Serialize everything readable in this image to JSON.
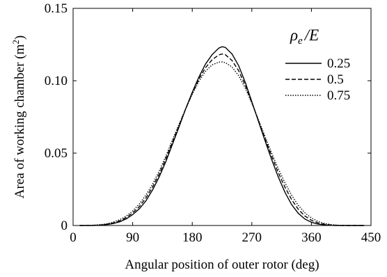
{
  "chart_data": {
    "type": "line",
    "title": "",
    "xlabel": "Angular position of outer rotor (deg)",
    "ylabel_main": "Area of working chamber (m",
    "ylabel_sup": "2",
    "ylabel_close": ")",
    "xlim": [
      0,
      450
    ],
    "ylim": [
      0,
      0.15
    ],
    "xticks": [
      0,
      90,
      180,
      270,
      360,
      450
    ],
    "xtick_labels": [
      "0",
      "90",
      "180",
      "270",
      "360",
      "450"
    ],
    "yticks": [
      0,
      0.05,
      0.1,
      0.15
    ],
    "ytick_labels": [
      "0",
      "0.05",
      "0.10",
      "0.15"
    ],
    "grid": false,
    "legend": {
      "title_main": "ρ",
      "title_sub": "e",
      "title_rest": "/E",
      "placement": "top-right"
    },
    "series": [
      {
        "name": "0.25",
        "dash": "solid",
        "x": [
          10,
          30,
          40,
          50,
          60,
          70,
          80,
          90,
          100,
          110,
          120,
          130,
          140,
          150,
          160,
          170,
          180,
          190,
          200,
          210,
          220,
          225,
          230,
          240,
          250,
          260,
          270,
          280,
          290,
          300,
          310,
          320,
          330,
          340,
          350,
          360,
          370,
          380,
          390,
          400,
          410,
          420,
          440
        ],
        "y": [
          0,
          0,
          0.0002,
          0.0006,
          0.0013,
          0.0025,
          0.0045,
          0.0075,
          0.0115,
          0.017,
          0.0245,
          0.0335,
          0.044,
          0.056,
          0.068,
          0.0805,
          0.092,
          0.1025,
          0.1115,
          0.118,
          0.1225,
          0.1235,
          0.123,
          0.1185,
          0.1105,
          0.099,
          0.0855,
          0.072,
          0.0585,
          0.0455,
          0.0335,
          0.023,
          0.0145,
          0.0085,
          0.0045,
          0.0022,
          0.001,
          0.0004,
          0.0001,
          0,
          0,
          0,
          0
        ]
      },
      {
        "name": "0.5",
        "dash": "dashed",
        "x": [
          10,
          30,
          40,
          50,
          60,
          70,
          80,
          90,
          100,
          110,
          120,
          130,
          140,
          150,
          160,
          170,
          180,
          190,
          200,
          210,
          220,
          225,
          230,
          240,
          250,
          260,
          270,
          280,
          290,
          300,
          310,
          320,
          330,
          340,
          350,
          360,
          370,
          380,
          390,
          400,
          410,
          420,
          440
        ],
        "y": [
          0,
          0.0001,
          0.0003,
          0.0008,
          0.0017,
          0.0031,
          0.0054,
          0.0087,
          0.013,
          0.019,
          0.0265,
          0.0355,
          0.046,
          0.0575,
          0.069,
          0.0805,
          0.0915,
          0.101,
          0.109,
          0.1145,
          0.1178,
          0.1185,
          0.118,
          0.114,
          0.107,
          0.097,
          0.085,
          0.0725,
          0.06,
          0.048,
          0.0365,
          0.0265,
          0.018,
          0.0113,
          0.0066,
          0.0036,
          0.0018,
          0.0008,
          0.0003,
          0.0001,
          0,
          0,
          0
        ]
      },
      {
        "name": "0.75",
        "dash": "dotted",
        "x": [
          10,
          30,
          40,
          50,
          60,
          70,
          80,
          90,
          100,
          110,
          120,
          130,
          140,
          150,
          160,
          170,
          180,
          190,
          200,
          210,
          220,
          225,
          230,
          240,
          250,
          260,
          270,
          280,
          290,
          300,
          310,
          320,
          330,
          340,
          350,
          360,
          370,
          380,
          390,
          400,
          410,
          420,
          440
        ],
        "y": [
          0,
          0.0002,
          0.0005,
          0.0011,
          0.0022,
          0.0039,
          0.0064,
          0.01,
          0.0148,
          0.021,
          0.0285,
          0.0375,
          0.0478,
          0.059,
          0.07,
          0.0805,
          0.0905,
          0.0995,
          0.1065,
          0.111,
          0.1128,
          0.113,
          0.1125,
          0.1095,
          0.1035,
          0.095,
          0.0845,
          0.073,
          0.0615,
          0.05,
          0.0392,
          0.0295,
          0.021,
          0.014,
          0.0088,
          0.0052,
          0.0028,
          0.0014,
          0.0006,
          0.0002,
          0.0001,
          0,
          0
        ]
      }
    ]
  }
}
